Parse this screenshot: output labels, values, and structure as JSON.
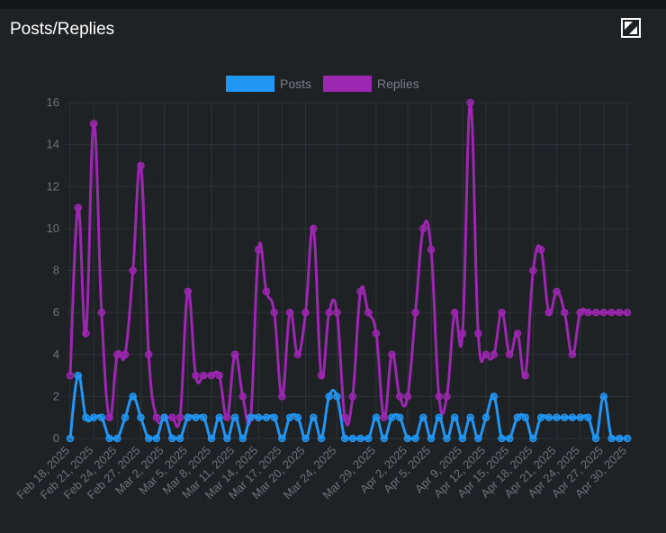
{
  "card": {
    "title": "Posts/Replies"
  },
  "icons": {
    "expand": "expand-icon"
  },
  "colors": {
    "posts": "#2196f3",
    "replies": "#9c27b0",
    "grid": "#2e3236",
    "axis_text": "#6e7378"
  },
  "chart_data": {
    "type": "line",
    "title": "Posts/Replies",
    "xlabel": "",
    "ylabel": "",
    "ylim": [
      0,
      16
    ],
    "yticks": [
      0,
      2,
      4,
      6,
      8,
      10,
      12,
      14,
      16
    ],
    "legend_position": "top",
    "grid": true,
    "x": [
      "Feb 18, 2025",
      "Feb 19, 2025",
      "Feb 20, 2025",
      "Feb 21, 2025",
      "Feb 22, 2025",
      "Feb 23, 2025",
      "Feb 24, 2025",
      "Feb 25, 2025",
      "Feb 26, 2025",
      "Feb 27, 2025",
      "Feb 28, 2025",
      "Mar 1, 2025",
      "Mar 2, 2025",
      "Mar 3, 2025",
      "Mar 4, 2025",
      "Mar 5, 2025",
      "Mar 6, 2025",
      "Mar 7, 2025",
      "Mar 8, 2025",
      "Mar 9, 2025",
      "Mar 10, 2025",
      "Mar 11, 2025",
      "Mar 12, 2025",
      "Mar 13, 2025",
      "Mar 14, 2025",
      "Mar 15, 2025",
      "Mar 16, 2025",
      "Mar 17, 2025",
      "Mar 18, 2025",
      "Mar 19, 2025",
      "Mar 20, 2025",
      "Mar 21, 2025",
      "Mar 22, 2025",
      "Mar 23, 2025",
      "Mar 24, 2025",
      "Mar 25, 2025",
      "Mar 26, 2025",
      "Mar 27, 2025",
      "Mar 28, 2025",
      "Mar 29, 2025",
      "Mar 30, 2025",
      "Mar 31, 2025",
      "Apr 1, 2025",
      "Apr 2, 2025",
      "Apr 3, 2025",
      "Apr 4, 2025",
      "Apr 5, 2025",
      "Apr 6, 2025",
      "Apr 7, 2025",
      "Apr 8, 2025",
      "Apr 9, 2025",
      "Apr 10, 2025",
      "Apr 11, 2025",
      "Apr 12, 2025",
      "Apr 13, 2025",
      "Apr 14, 2025",
      "Apr 15, 2025",
      "Apr 16, 2025",
      "Apr 17, 2025",
      "Apr 18, 2025",
      "Apr 19, 2025",
      "Apr 20, 2025",
      "Apr 21, 2025",
      "Apr 22, 2025",
      "Apr 23, 2025",
      "Apr 24, 2025",
      "Apr 25, 2025",
      "Apr 26, 2025",
      "Apr 27, 2025",
      "Apr 28, 2025",
      "Apr 29, 2025",
      "Apr 30, 2025"
    ],
    "xtick_labels": [
      "Feb 18, 2025",
      "Feb 21, 2025",
      "Feb 24, 2025",
      "Feb 27, 2025",
      "Mar 2, 2025",
      "Mar 5, 2025",
      "Mar 8, 2025",
      "Mar 11, 2025",
      "Mar 14, 2025",
      "Mar 17, 2025",
      "Mar 20, 2025",
      "Mar 24, 2025",
      "Mar 29, 2025",
      "Apr 2, 2025",
      "Apr 5, 2025",
      "Apr 9, 2025",
      "Apr 12, 2025",
      "Apr 15, 2025",
      "Apr 18, 2025",
      "Apr 21, 2025",
      "Apr 24, 2025",
      "Apr 27, 2025",
      "Apr 30, 2025"
    ],
    "series": [
      {
        "name": "Posts",
        "color": "#2196f3",
        "values": [
          0,
          3,
          1,
          1,
          1,
          0,
          0,
          1,
          2,
          1,
          0,
          0,
          1,
          0,
          0,
          1,
          1,
          1,
          0,
          1,
          0,
          1,
          0,
          1,
          1,
          1,
          1,
          0,
          1,
          1,
          0,
          1,
          0,
          2,
          2,
          0,
          0,
          0,
          0,
          1,
          0,
          1,
          1,
          0,
          0,
          1,
          0,
          1,
          0,
          1,
          0,
          1,
          0,
          1,
          2,
          0,
          0,
          1,
          1,
          0,
          1,
          1,
          1,
          1,
          1,
          1,
          1,
          0,
          2,
          0,
          0,
          0
        ]
      },
      {
        "name": "Replies",
        "color": "#9c27b0",
        "values": [
          3,
          11,
          5,
          15,
          6,
          1,
          4,
          4,
          8,
          13,
          4,
          1,
          1,
          1,
          1,
          7,
          3,
          3,
          3,
          3,
          1,
          4,
          2,
          1,
          9,
          7,
          6,
          2,
          6,
          4,
          6,
          10,
          3,
          6,
          6,
          1,
          2,
          7,
          6,
          5,
          1,
          4,
          2,
          2,
          6,
          10,
          9,
          2,
          2,
          6,
          5,
          16,
          5,
          4,
          4,
          6,
          4,
          5,
          3,
          8,
          9,
          6,
          7,
          6,
          4,
          6,
          6,
          6,
          6,
          6,
          6,
          6
        ]
      }
    ]
  }
}
